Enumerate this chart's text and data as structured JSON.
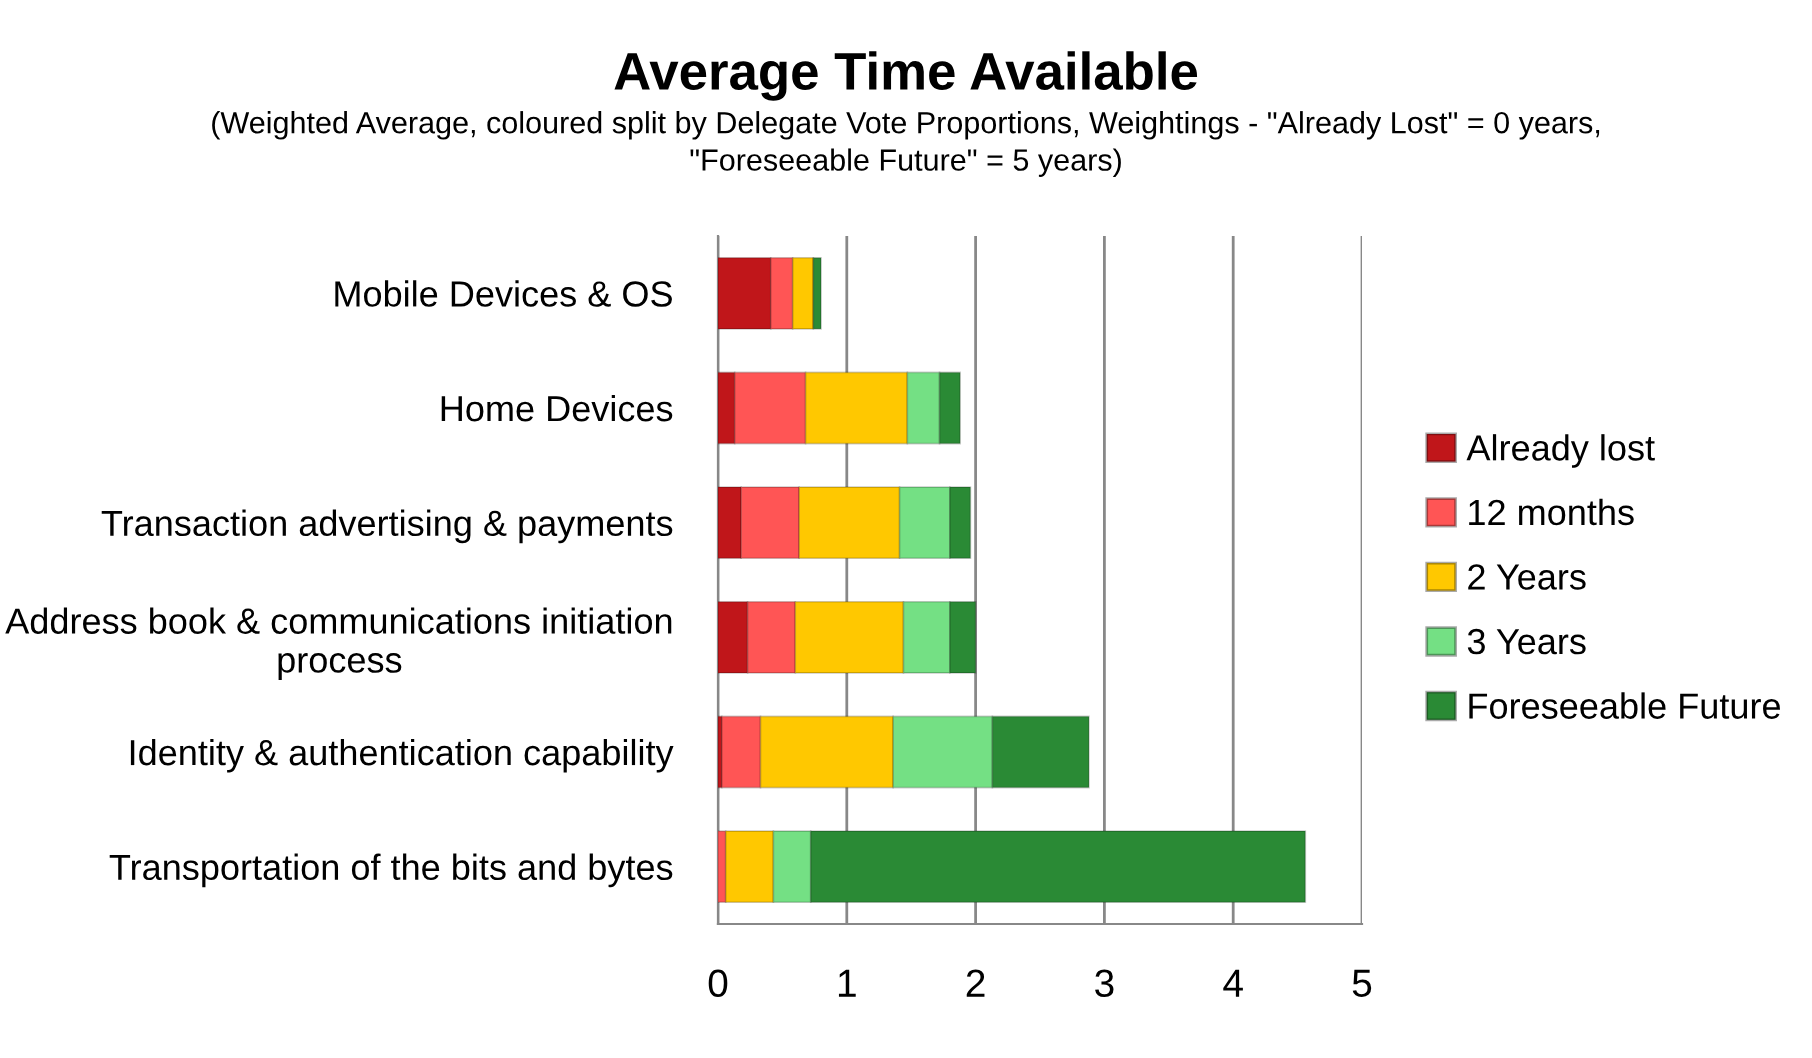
{
  "chart_data": {
    "type": "bar",
    "orientation": "horizontal",
    "stacked": true,
    "title": "Average Time Available",
    "subtitle": "(Weighted Average, coloured split by Delegate Vote Proportions, Weightings - \"Already Lost\" = 0 years,\n\"Foreseeable Future\" = 5 years)",
    "categories": [
      "Mobile Devices & OS",
      "Home Devices",
      "Transaction advertising & payments",
      "Address book & communications initiation\nprocess",
      "Identity & authentication capability",
      "Transportation of the bits and bytes"
    ],
    "series": [
      {
        "name": "Already lost",
        "color": "#c0161a",
        "values": [
          0.41,
          0.13,
          0.18,
          0.23,
          0.03,
          0
        ]
      },
      {
        "name": "12 months",
        "color": "#ff5555",
        "values": [
          0.17,
          0.55,
          0.45,
          0.37,
          0.3,
          0.06
        ]
      },
      {
        "name": "2 Years",
        "color": "#ffc800",
        "values": [
          0.16,
          0.79,
          0.78,
          0.84,
          1.03,
          0.37
        ]
      },
      {
        "name": "3 Years",
        "color": "#74e084",
        "values": [
          0,
          0.25,
          0.39,
          0.36,
          0.77,
          0.29
        ]
      },
      {
        "name": "Foreseeable Future",
        "color": "#2a8a35",
        "values": [
          0.06,
          0.16,
          0.16,
          0.2,
          0.75,
          3.84
        ]
      }
    ],
    "xlim": [
      0,
      5
    ],
    "xticks": [
      0,
      1,
      2,
      3,
      4,
      5
    ],
    "grid": "x",
    "legend": "right"
  }
}
